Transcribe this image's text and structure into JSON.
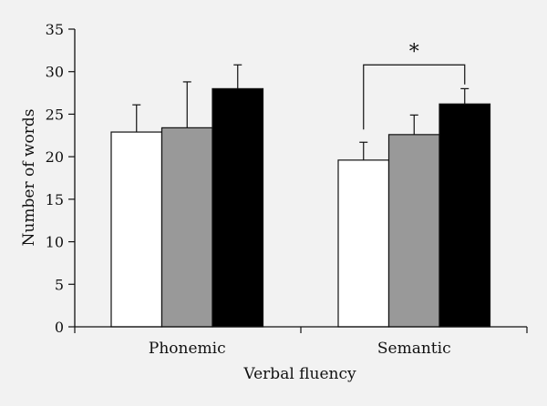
{
  "chart_data": {
    "type": "bar",
    "title": "",
    "xlabel": "Verbal fluency",
    "ylabel": "Number of words",
    "categories": [
      "Phonemic",
      "Semantic"
    ],
    "ylim": [
      0,
      35
    ],
    "yticks": [
      "0",
      "5",
      "10",
      "15",
      "20",
      "25",
      "30",
      "35"
    ],
    "grid": false,
    "legend": "none",
    "series": [
      {
        "color": "#ffffff",
        "values": [
          22.9,
          19.6
        ],
        "errors": [
          3.2,
          2.1
        ]
      },
      {
        "color": "#999999",
        "values": [
          23.4,
          22.6
        ],
        "errors": [
          5.4,
          2.3
        ]
      },
      {
        "color": "#000000",
        "values": [
          28.0,
          26.2
        ],
        "errors": [
          2.8,
          1.8
        ]
      }
    ],
    "annotations": [
      {
        "text": "*",
        "category_index": 1,
        "from_series": 0,
        "to_series": 2,
        "bracket_y": 30.8
      }
    ]
  }
}
